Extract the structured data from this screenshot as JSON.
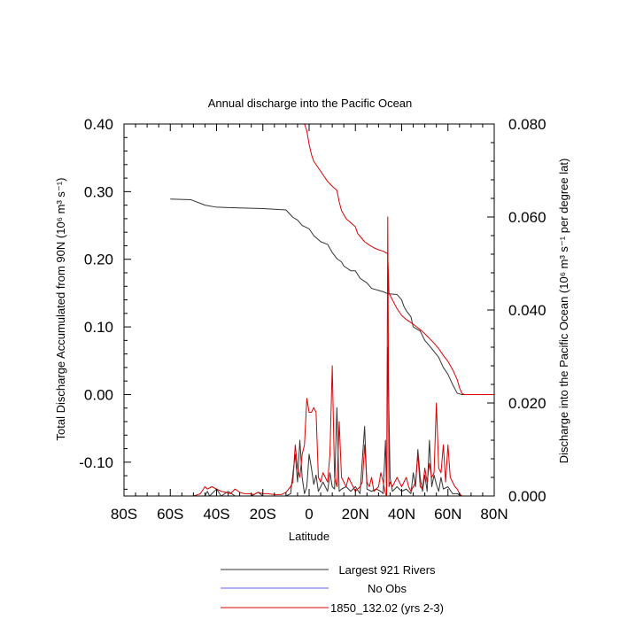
{
  "chart_data": {
    "type": "line",
    "title": "Annual discharge into the Pacific Ocean",
    "xlabel": "Latitude",
    "ylabel_left": "Total Discharge Accumulated from 90N (10⁶ m³ s⁻¹)",
    "ylabel_right": "Discharge into the Pacific Ocean (10⁶ m³ s⁻¹ per degree lat)",
    "xlim": [
      -80,
      80
    ],
    "ylim_left": [
      -0.15,
      0.4
    ],
    "ylim_right": [
      0.0,
      0.08
    ],
    "x_ticks": [
      {
        "value": -80,
        "label": "80S"
      },
      {
        "value": -60,
        "label": "60S"
      },
      {
        "value": -40,
        "label": "40S"
      },
      {
        "value": -20,
        "label": "20S"
      },
      {
        "value": 0,
        "label": "0"
      },
      {
        "value": 20,
        "label": "20N"
      },
      {
        "value": 40,
        "label": "40N"
      },
      {
        "value": 60,
        "label": "60N"
      },
      {
        "value": 80,
        "label": "80N"
      }
    ],
    "y_ticks_left": [
      {
        "value": 0.4,
        "label": "0.40"
      },
      {
        "value": 0.3,
        "label": "0.30"
      },
      {
        "value": 0.2,
        "label": "0.20"
      },
      {
        "value": 0.1,
        "label": "0.10"
      },
      {
        "value": 0.0,
        "label": "0.00"
      },
      {
        "value": -0.1,
        "label": "-0.10"
      }
    ],
    "y_ticks_right": [
      {
        "value": 0.08,
        "label": "0.080"
      },
      {
        "value": 0.06,
        "label": "0.060"
      },
      {
        "value": 0.04,
        "label": "0.040"
      },
      {
        "value": 0.02,
        "label": "0.020"
      },
      {
        "value": 0.0,
        "label": "0.000"
      }
    ],
    "legend_placement": "below",
    "series": [
      {
        "name": "Largest 921 Rivers",
        "color": "#333333",
        "cumulative": [
          [
            -60,
            0.289
          ],
          [
            -51,
            0.288
          ],
          [
            -45,
            0.28
          ],
          [
            -40,
            0.277
          ],
          [
            -30,
            0.276
          ],
          [
            -20,
            0.275
          ],
          [
            -10,
            0.273
          ],
          [
            -7,
            0.262
          ],
          [
            -5,
            0.258
          ],
          [
            -3,
            0.25
          ],
          [
            0,
            0.245
          ],
          [
            2,
            0.235
          ],
          [
            5,
            0.226
          ],
          [
            8,
            0.222
          ],
          [
            10,
            0.21
          ],
          [
            12,
            0.201
          ],
          [
            14,
            0.196
          ],
          [
            15,
            0.19
          ],
          [
            18,
            0.183
          ],
          [
            20,
            0.183
          ],
          [
            22,
            0.172
          ],
          [
            25,
            0.165
          ],
          [
            27,
            0.157
          ],
          [
            30,
            0.154
          ],
          [
            32,
            0.152
          ],
          [
            34,
            0.149
          ],
          [
            38,
            0.148
          ],
          [
            40,
            0.14
          ],
          [
            41,
            0.13
          ],
          [
            42,
            0.124
          ],
          [
            44,
            0.115
          ],
          [
            45,
            0.1
          ],
          [
            48,
            0.094
          ],
          [
            50,
            0.08
          ],
          [
            53,
            0.068
          ],
          [
            56,
            0.055
          ],
          [
            58,
            0.04
          ],
          [
            60,
            0.03
          ],
          [
            62,
            0.015
          ],
          [
            64,
            0.002
          ],
          [
            66,
            0.0
          ],
          [
            80,
            0.0
          ]
        ],
        "per_degree": [
          [
            -80,
            0
          ],
          [
            -45,
            0
          ],
          [
            -44,
            0.001
          ],
          [
            -43,
            0
          ],
          [
            -40,
            0.0015
          ],
          [
            -38,
            0
          ],
          [
            -35,
            0.001
          ],
          [
            -32,
            0
          ],
          [
            -25,
            0
          ],
          [
            -22,
            0.0008
          ],
          [
            -20,
            0
          ],
          [
            -10,
            0
          ],
          [
            -8,
            0.0005
          ],
          [
            -6,
            0.009
          ],
          [
            -5,
            0.003
          ],
          [
            -4,
            0.012
          ],
          [
            -3,
            0.004
          ],
          [
            -2,
            0.0005
          ],
          [
            -1,
            0.002
          ],
          [
            0,
            0.009
          ],
          [
            1,
            0.006
          ],
          [
            2,
            0.0025
          ],
          [
            3,
            0.0045
          ],
          [
            4,
            0.001
          ],
          [
            6,
            0.003
          ],
          [
            8,
            0.001
          ],
          [
            9,
            0.005
          ],
          [
            10,
            0.002
          ],
          [
            11,
            0.0015
          ],
          [
            12,
            0.019
          ],
          [
            13,
            0.001
          ],
          [
            14,
            0.0015
          ],
          [
            16,
            0.002
          ],
          [
            18,
            0.001
          ],
          [
            20,
            0.002
          ],
          [
            22,
            0.0005
          ],
          [
            24,
            0.015
          ],
          [
            25,
            0.0015
          ],
          [
            27,
            0.001
          ],
          [
            29,
            0.0015
          ],
          [
            31,
            0.001
          ],
          [
            32,
            0.0005
          ],
          [
            33,
            0.012
          ],
          [
            33.5,
            0.0
          ],
          [
            34,
            0.032
          ],
          [
            35,
            0.004
          ],
          [
            36,
            0.001
          ],
          [
            38,
            0.002
          ],
          [
            40,
            0.001
          ],
          [
            42,
            0.0015
          ],
          [
            44,
            0.0005
          ],
          [
            45,
            0.005
          ],
          [
            46,
            0.002
          ],
          [
            47,
            0.01
          ],
          [
            48,
            0.004
          ],
          [
            49,
            0.001
          ],
          [
            50,
            0.0045
          ],
          [
            51,
            0.001
          ],
          [
            52,
            0.012
          ],
          [
            53,
            0.002
          ],
          [
            54,
            0.0045
          ],
          [
            55,
            0.0025
          ],
          [
            56,
            0.001
          ],
          [
            57,
            0.004
          ],
          [
            58,
            0.0015
          ],
          [
            60,
            0.002
          ],
          [
            62,
            0.0005
          ],
          [
            64,
            0.0005
          ],
          [
            66,
            0
          ],
          [
            80,
            0
          ]
        ]
      },
      {
        "name": "No Obs",
        "color": "#6666ee",
        "cumulative": [],
        "per_degree": []
      },
      {
        "name": "1850_132.02 (yrs 2-3)",
        "color": "#dd0000",
        "cumulative": [
          [
            -2,
            0.4
          ],
          [
            -1,
            0.39
          ],
          [
            0,
            0.37
          ],
          [
            1,
            0.355
          ],
          [
            2,
            0.345
          ],
          [
            4,
            0.335
          ],
          [
            6,
            0.325
          ],
          [
            8,
            0.315
          ],
          [
            10,
            0.308
          ],
          [
            12,
            0.302
          ],
          [
            13,
            0.285
          ],
          [
            14,
            0.272
          ],
          [
            15,
            0.266
          ],
          [
            16,
            0.26
          ],
          [
            18,
            0.254
          ],
          [
            20,
            0.248
          ],
          [
            21,
            0.238
          ],
          [
            22,
            0.234
          ],
          [
            24,
            0.226
          ],
          [
            26,
            0.221
          ],
          [
            28,
            0.217
          ],
          [
            30,
            0.214
          ],
          [
            32,
            0.212
          ],
          [
            33,
            0.21
          ],
          [
            34,
            0.208
          ],
          [
            34.5,
            0.15
          ],
          [
            36,
            0.14
          ],
          [
            38,
            0.127
          ],
          [
            40,
            0.117
          ],
          [
            42,
            0.111
          ],
          [
            45,
            0.104
          ],
          [
            48,
            0.096
          ],
          [
            50,
            0.09
          ],
          [
            52,
            0.083
          ],
          [
            54,
            0.076
          ],
          [
            56,
            0.068
          ],
          [
            58,
            0.058
          ],
          [
            60,
            0.049
          ],
          [
            62,
            0.037
          ],
          [
            64,
            0.022
          ],
          [
            65,
            0.01
          ],
          [
            66,
            0.002
          ],
          [
            67,
            0.0
          ],
          [
            80,
            0.0
          ]
        ],
        "per_degree": [
          [
            -80,
            0
          ],
          [
            -50,
            0
          ],
          [
            -48,
            0.0003
          ],
          [
            -47,
            0.0005
          ],
          [
            -45,
            0.002
          ],
          [
            -44,
            0.0015
          ],
          [
            -42,
            0.002
          ],
          [
            -40,
            0.0015
          ],
          [
            -38,
            0.001
          ],
          [
            -36,
            0.0008
          ],
          [
            -34,
            0.0005
          ],
          [
            -32,
            0.0015
          ],
          [
            -30,
            0.0008
          ],
          [
            -28,
            0.0005
          ],
          [
            -26,
            0.0005
          ],
          [
            -24,
            0.0003
          ],
          [
            -22,
            0.0008
          ],
          [
            -20,
            0.0005
          ],
          [
            -18,
            0.0005
          ],
          [
            -15,
            0.0003
          ],
          [
            -12,
            0.0003
          ],
          [
            -10,
            0.0008
          ],
          [
            -8,
            0.002
          ],
          [
            -7,
            0.003
          ],
          [
            -6,
            0.011
          ],
          [
            -5,
            0.006
          ],
          [
            -4,
            0.004
          ],
          [
            -3,
            0.009
          ],
          [
            -2,
            0.011
          ],
          [
            -1,
            0.021
          ],
          [
            0,
            0.018
          ],
          [
            1,
            0.018
          ],
          [
            2,
            0.019
          ],
          [
            3,
            0.018
          ],
          [
            4,
            0.004
          ],
          [
            5,
            0.003
          ],
          [
            6,
            0.005
          ],
          [
            8,
            0.003
          ],
          [
            9,
            0.009
          ],
          [
            10,
            0.028
          ],
          [
            11,
            0.004
          ],
          [
            12,
            0.002
          ],
          [
            13,
            0.016
          ],
          [
            14,
            0.004
          ],
          [
            15,
            0.003
          ],
          [
            16,
            0.002
          ],
          [
            17,
            0.004
          ],
          [
            18,
            0.003
          ],
          [
            19,
            0.002
          ],
          [
            20,
            0.001
          ],
          [
            22,
            0.002
          ],
          [
            23,
            0.003
          ],
          [
            24,
            0.011
          ],
          [
            25,
            0.003
          ],
          [
            26,
            0.002
          ],
          [
            27,
            0.004
          ],
          [
            28,
            0.001
          ],
          [
            30,
            0.002
          ],
          [
            31,
            0.005
          ],
          [
            32,
            0.003
          ],
          [
            33,
            0.0005
          ],
          [
            33.5,
            0.0
          ],
          [
            34,
            0.06
          ],
          [
            34.5,
            0.002
          ],
          [
            35,
            0.003
          ],
          [
            36,
            0.002
          ],
          [
            38,
            0.004
          ],
          [
            40,
            0.002
          ],
          [
            42,
            0.004
          ],
          [
            43,
            0.002
          ],
          [
            44,
            0.001
          ],
          [
            46,
            0.003
          ],
          [
            47,
            0.009
          ],
          [
            48,
            0.002
          ],
          [
            49,
            0.0015
          ],
          [
            50,
            0.006
          ],
          [
            51,
            0.003
          ],
          [
            52,
            0.007
          ],
          [
            53,
            0.004
          ],
          [
            54,
            0.005
          ],
          [
            55,
            0.02
          ],
          [
            56,
            0.006
          ],
          [
            57,
            0.005
          ],
          [
            58,
            0.011
          ],
          [
            59,
            0.003
          ],
          [
            60,
            0.011
          ],
          [
            61,
            0.004
          ],
          [
            62,
            0.003
          ],
          [
            63,
            0.002
          ],
          [
            64,
            0.0015
          ],
          [
            65,
            0.0005
          ],
          [
            66,
            0
          ],
          [
            80,
            0
          ]
        ]
      }
    ]
  }
}
